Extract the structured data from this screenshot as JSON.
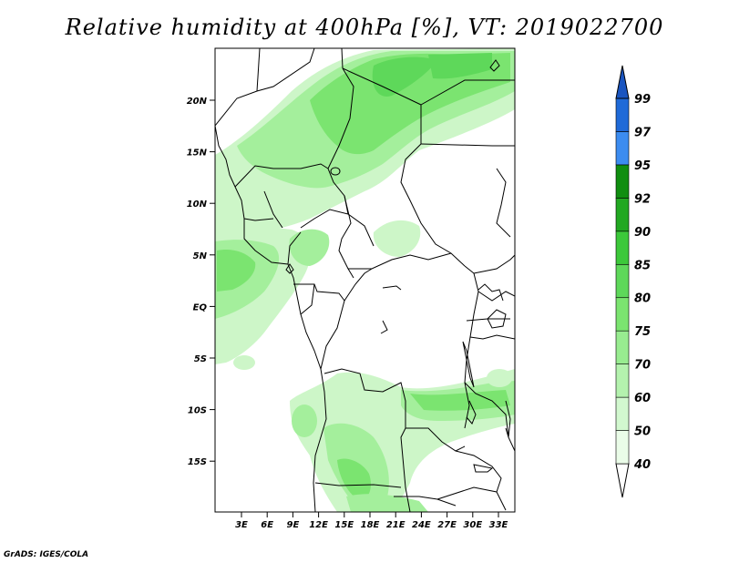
{
  "title": "Relative humidity at 400hPa [%], VT: 2019022700",
  "credit": "GrADS: IGES/COLA",
  "axes": {
    "lat_labels": [
      "20N",
      "15N",
      "10N",
      "5N",
      "EQ",
      "5S",
      "10S",
      "15S"
    ],
    "lon_labels": [
      "3E",
      "6E",
      "9E",
      "12E",
      "15E",
      "18E",
      "21E",
      "24E",
      "27E",
      "30E",
      "33E"
    ]
  },
  "colorbar": {
    "levels": [
      "40",
      "50",
      "60",
      "70",
      "75",
      "80",
      "85",
      "90",
      "92",
      "95",
      "97",
      "99"
    ],
    "colors": [
      "#eafce8",
      "#d2f8cf",
      "#b4f2ae",
      "#98ec90",
      "#7be470",
      "#5ed85a",
      "#3cc83a",
      "#22a822",
      "#108e10",
      "#3c8cf0",
      "#1f6ad8",
      "#1446b0"
    ],
    "end_color": "#1a55c0"
  },
  "chart_data": {
    "type": "heatmap",
    "title": "Relative humidity at 400hPa [%], VT: 2019022700",
    "variable": "Relative humidity",
    "units": "%",
    "level": "400hPa",
    "valid_time": "2019022700",
    "lon_range": [
      0,
      35
    ],
    "lat_range": [
      -20,
      25
    ],
    "contour_levels": [
      40,
      50,
      60,
      70,
      75,
      80,
      85,
      90,
      92,
      95,
      97,
      99
    ]
  }
}
